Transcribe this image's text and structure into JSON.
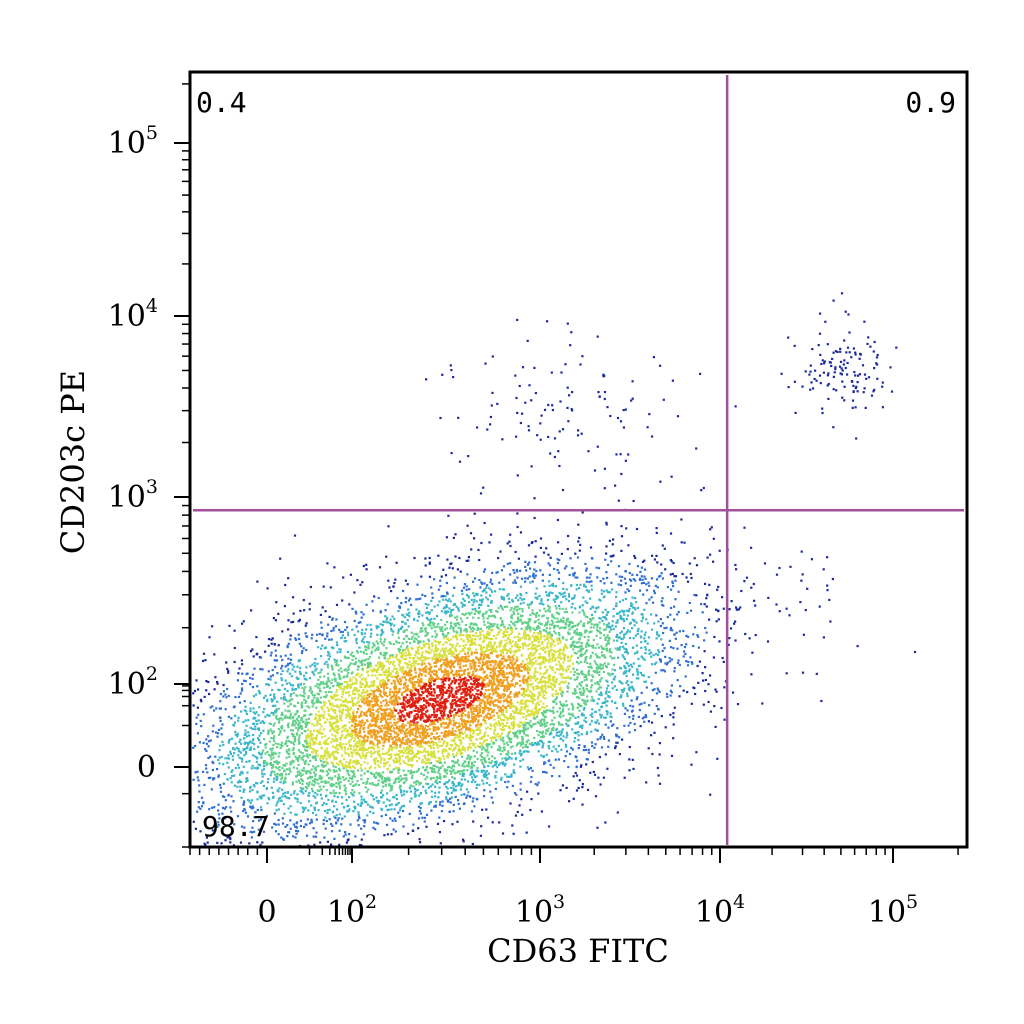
{
  "chart_data": {
    "type": "scatter",
    "subtype": "flow-cytometry-density-dot-plot",
    "xlabel": "CD63 FITC",
    "ylabel": "CD203c PE",
    "x_scale": "biexponential",
    "y_scale": "biexponential",
    "xlim": [
      -80,
      220000
    ],
    "ylim": [
      -30,
      230000
    ],
    "x_ticks": [
      {
        "value": 0,
        "base": "0",
        "exp": ""
      },
      {
        "value": 100,
        "base": "10",
        "exp": "2"
      },
      {
        "value": 1000,
        "base": "10",
        "exp": "3"
      },
      {
        "value": 10000,
        "base": "10",
        "exp": "4"
      },
      {
        "value": 100000,
        "base": "10",
        "exp": "5"
      }
    ],
    "y_ticks": [
      {
        "value": 0,
        "base": "0",
        "exp": ""
      },
      {
        "value": 100,
        "base": "10",
        "exp": "2"
      },
      {
        "value": 1000,
        "base": "10",
        "exp": "3"
      },
      {
        "value": 10000,
        "base": "10",
        "exp": "4"
      },
      {
        "value": 100000,
        "base": "10",
        "exp": "5"
      }
    ],
    "gates": {
      "x_threshold": 11000,
      "y_threshold": 850
    },
    "gate_color": "#a0509a",
    "quadrants": [
      {
        "position": "top-left",
        "label": "0.4"
      },
      {
        "position": "top-right",
        "label": "0.9"
      },
      {
        "position": "bottom-left",
        "label": "98.7"
      }
    ],
    "populations": [
      {
        "name": "main",
        "center_x": 200,
        "center_y": 45,
        "log_spread": 0.45
      },
      {
        "name": "upper-mid",
        "center_x": 1200,
        "center_y": 3500,
        "log_spread": 0.3
      },
      {
        "name": "upper-right",
        "center_x": 50000,
        "center_y": 5000,
        "log_spread": 0.12
      }
    ],
    "density_colors": [
      "#1a2a9c",
      "#2f6fd0",
      "#3bb6c8",
      "#63d08a",
      "#d8e040",
      "#f0a020",
      "#e02010"
    ],
    "grid": false,
    "legend": "none"
  }
}
